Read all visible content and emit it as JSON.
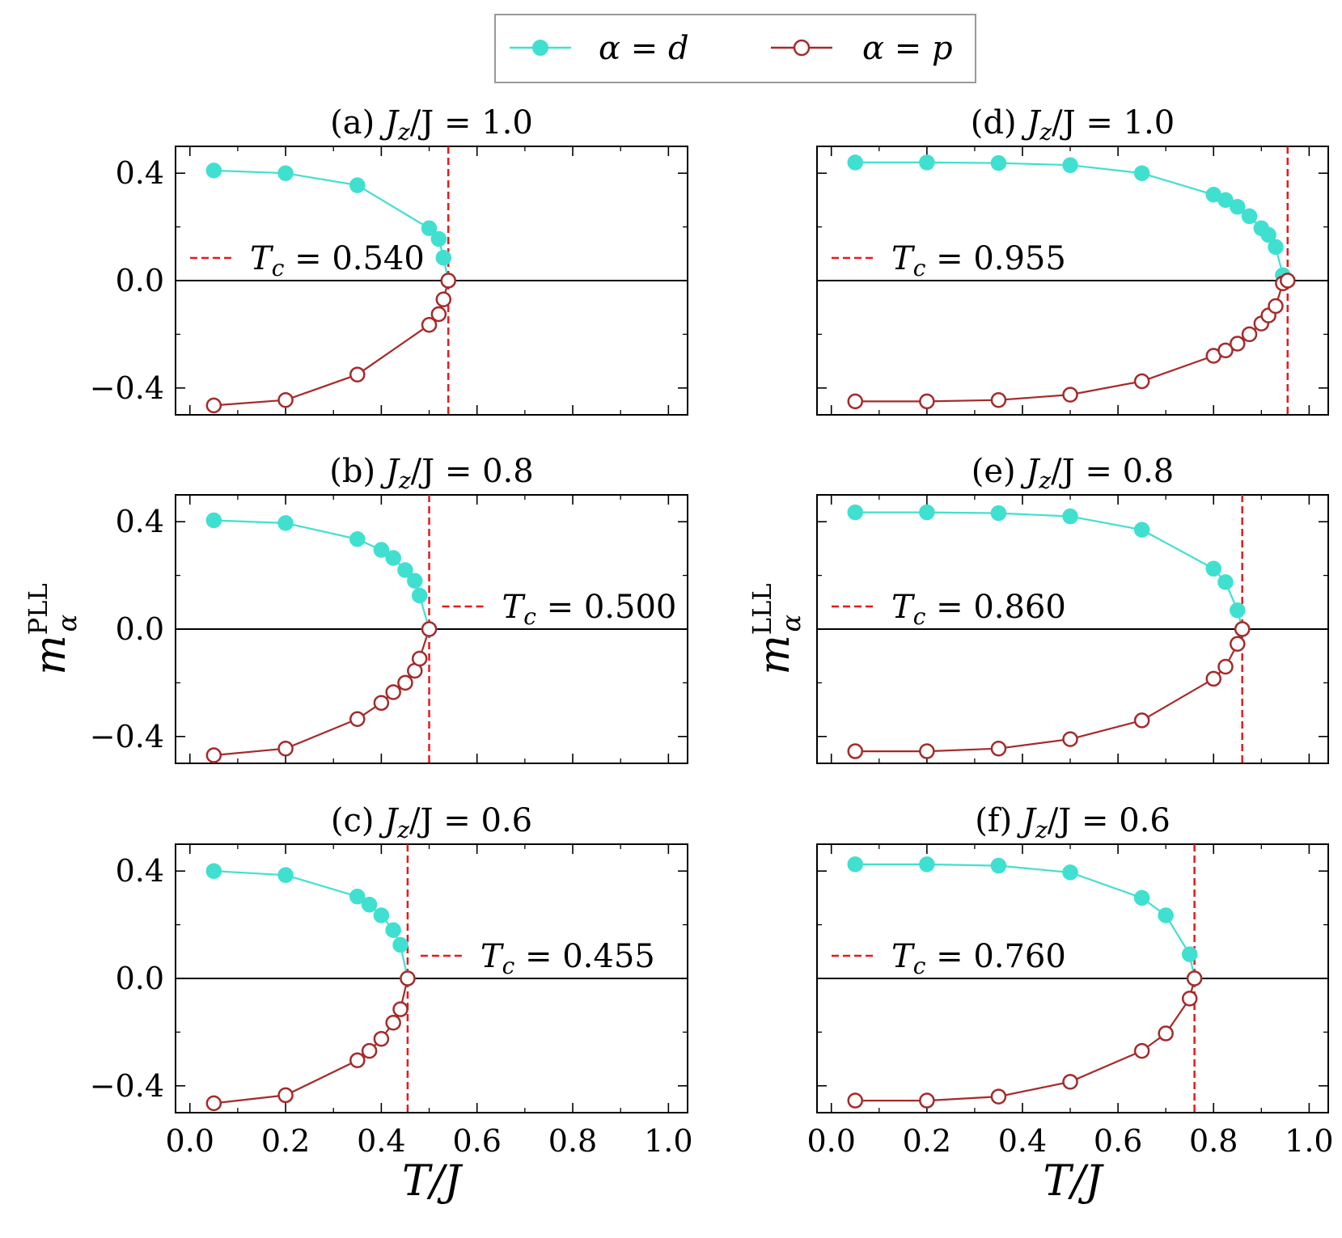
{
  "legend": {
    "entries": [
      {
        "label_var": "α",
        "label_eq": "=",
        "label_val": "d",
        "color": "#40E0D0",
        "marker": "filled-circle"
      },
      {
        "label_var": "α",
        "label_eq": "=",
        "label_val": "p",
        "color": "#A52A2A",
        "marker": "open-circle"
      }
    ]
  },
  "x_tick_labels": [
    "0.0",
    "0.2",
    "0.4",
    "0.6",
    "0.8",
    "1.0"
  ],
  "y_tick_labels": [
    "0.4",
    "0.0",
    "−0.4"
  ],
  "xlabel": "T/J",
  "ylabel_left": {
    "base": "m",
    "sup": "PLL",
    "sub": "α"
  },
  "ylabel_right": {
    "base": "m",
    "sup": "LLL",
    "sub": "α"
  },
  "chart_data": [
    {
      "type": "line",
      "panel": "(a)",
      "title_param": "J",
      "title_sub": "z",
      "title_rest": "/J = 1.0",
      "xlim": [
        -0.03,
        1.04
      ],
      "ylim": [
        -0.5,
        0.5
      ],
      "tc_label": "T",
      "tc_sub": "c",
      "tc_value": "= 0.540",
      "tc": 0.54,
      "tc_legend_pos": "left",
      "series": [
        {
          "name": "α = d",
          "x": [
            0.05,
            0.2,
            0.35,
            0.5,
            0.52,
            0.53,
            0.54
          ],
          "y": [
            0.41,
            0.4,
            0.355,
            0.195,
            0.155,
            0.085,
            0.0
          ]
        },
        {
          "name": "α = p",
          "x": [
            0.05,
            0.2,
            0.35,
            0.5,
            0.52,
            0.53,
            0.54
          ],
          "y": [
            -0.465,
            -0.445,
            -0.35,
            -0.165,
            -0.125,
            -0.07,
            0.0
          ]
        }
      ]
    },
    {
      "type": "line",
      "panel": "(b)",
      "title_param": "J",
      "title_sub": "z",
      "title_rest": "/J = 0.8",
      "xlim": [
        -0.03,
        1.04
      ],
      "ylim": [
        -0.5,
        0.5
      ],
      "tc_label": "T",
      "tc_sub": "c",
      "tc_value": "= 0.500",
      "tc": 0.5,
      "tc_legend_pos": "right",
      "series": [
        {
          "name": "α = d",
          "x": [
            0.05,
            0.2,
            0.35,
            0.4,
            0.425,
            0.45,
            0.47,
            0.48,
            0.5
          ],
          "y": [
            0.405,
            0.395,
            0.335,
            0.295,
            0.265,
            0.22,
            0.18,
            0.125,
            0.0
          ]
        },
        {
          "name": "α = p",
          "x": [
            0.05,
            0.2,
            0.35,
            0.4,
            0.425,
            0.45,
            0.47,
            0.48,
            0.5
          ],
          "y": [
            -0.47,
            -0.445,
            -0.335,
            -0.275,
            -0.235,
            -0.2,
            -0.155,
            -0.11,
            0.0
          ]
        }
      ]
    },
    {
      "type": "line",
      "panel": "(c)",
      "title_param": "J",
      "title_sub": "z",
      "title_rest": "/J = 0.6",
      "xlim": [
        -0.03,
        1.04
      ],
      "ylim": [
        -0.5,
        0.5
      ],
      "tc_label": "T",
      "tc_sub": "c",
      "tc_value": "= 0.455",
      "tc": 0.455,
      "tc_legend_pos": "right",
      "series": [
        {
          "name": "α = d",
          "x": [
            0.05,
            0.2,
            0.35,
            0.375,
            0.4,
            0.425,
            0.44,
            0.455
          ],
          "y": [
            0.4,
            0.385,
            0.305,
            0.275,
            0.235,
            0.18,
            0.125,
            0.0
          ]
        },
        {
          "name": "α = p",
          "x": [
            0.05,
            0.2,
            0.35,
            0.375,
            0.4,
            0.425,
            0.44,
            0.455
          ],
          "y": [
            -0.465,
            -0.435,
            -0.305,
            -0.27,
            -0.225,
            -0.165,
            -0.115,
            0.0
          ]
        }
      ]
    },
    {
      "type": "line",
      "panel": "(d)",
      "title_param": "J",
      "title_sub": "z",
      "title_rest": "/J = 1.0",
      "xlim": [
        -0.03,
        1.04
      ],
      "ylim": [
        -0.5,
        0.5
      ],
      "tc_label": "T",
      "tc_sub": "c",
      "tc_value": "= 0.955",
      "tc": 0.955,
      "tc_legend_pos": "left",
      "series": [
        {
          "name": "α = d",
          "x": [
            0.05,
            0.2,
            0.35,
            0.5,
            0.65,
            0.8,
            0.825,
            0.85,
            0.875,
            0.9,
            0.915,
            0.93,
            0.945,
            0.955
          ],
          "y": [
            0.44,
            0.44,
            0.438,
            0.43,
            0.4,
            0.32,
            0.3,
            0.275,
            0.24,
            0.195,
            0.17,
            0.125,
            0.02,
            0.0
          ]
        },
        {
          "name": "α = p",
          "x": [
            0.05,
            0.2,
            0.35,
            0.5,
            0.65,
            0.8,
            0.825,
            0.85,
            0.875,
            0.9,
            0.915,
            0.93,
            0.945,
            0.955
          ],
          "y": [
            -0.45,
            -0.45,
            -0.445,
            -0.425,
            -0.375,
            -0.28,
            -0.26,
            -0.235,
            -0.2,
            -0.16,
            -0.13,
            -0.095,
            -0.01,
            0.0
          ]
        }
      ]
    },
    {
      "type": "line",
      "panel": "(e)",
      "title_param": "J",
      "title_sub": "z",
      "title_rest": "/J = 0.8",
      "xlim": [
        -0.03,
        1.04
      ],
      "ylim": [
        -0.5,
        0.5
      ],
      "tc_label": "T",
      "tc_sub": "c",
      "tc_value": "= 0.860",
      "tc": 0.86,
      "tc_legend_pos": "left",
      "series": [
        {
          "name": "α = d",
          "x": [
            0.05,
            0.2,
            0.35,
            0.5,
            0.65,
            0.8,
            0.825,
            0.85,
            0.86
          ],
          "y": [
            0.435,
            0.435,
            0.432,
            0.42,
            0.37,
            0.225,
            0.175,
            0.07,
            0.0
          ]
        },
        {
          "name": "α = p",
          "x": [
            0.05,
            0.2,
            0.35,
            0.5,
            0.65,
            0.8,
            0.825,
            0.85,
            0.86
          ],
          "y": [
            -0.455,
            -0.455,
            -0.445,
            -0.41,
            -0.34,
            -0.185,
            -0.14,
            -0.055,
            0.0
          ]
        }
      ]
    },
    {
      "type": "line",
      "panel": "(f)",
      "title_param": "J",
      "title_sub": "z",
      "title_rest": "/J = 0.6",
      "xlim": [
        -0.03,
        1.04
      ],
      "ylim": [
        -0.5,
        0.5
      ],
      "tc_label": "T",
      "tc_sub": "c",
      "tc_value": "= 0.760",
      "tc": 0.76,
      "tc_legend_pos": "left",
      "series": [
        {
          "name": "α = d",
          "x": [
            0.05,
            0.2,
            0.35,
            0.5,
            0.65,
            0.7,
            0.75,
            0.76
          ],
          "y": [
            0.425,
            0.425,
            0.42,
            0.395,
            0.3,
            0.235,
            0.09,
            0.0
          ]
        },
        {
          "name": "α = p",
          "x": [
            0.05,
            0.2,
            0.35,
            0.5,
            0.65,
            0.7,
            0.75,
            0.76
          ],
          "y": [
            -0.455,
            -0.455,
            -0.44,
            -0.385,
            -0.27,
            -0.205,
            -0.075,
            0.0
          ]
        }
      ]
    }
  ]
}
